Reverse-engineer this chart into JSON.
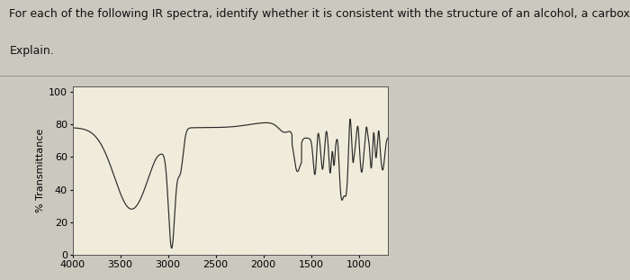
{
  "title_line1": "For each of the following IR spectra, identify whether it is consistent with the structure of an alcohol, a carboxylic acid, or neither.",
  "title_line2": "Explain.",
  "ylabel": "% Transmittance",
  "xlabel_ticks": [
    4000,
    3500,
    3000,
    2500,
    2000,
    1500,
    1000
  ],
  "yticks": [
    0,
    20,
    40,
    60,
    80,
    100
  ],
  "xlim": [
    4000,
    700
  ],
  "ylim": [
    0,
    103
  ],
  "plot_bg": "#f0ecdb",
  "fig_bg": "#cbc8be",
  "line_color": "#2a2a2a",
  "title_color": "#111111",
  "title_fontsize": 9.0,
  "axis_label_fontsize": 8,
  "tick_fontsize": 8,
  "separator_color": "#999999"
}
